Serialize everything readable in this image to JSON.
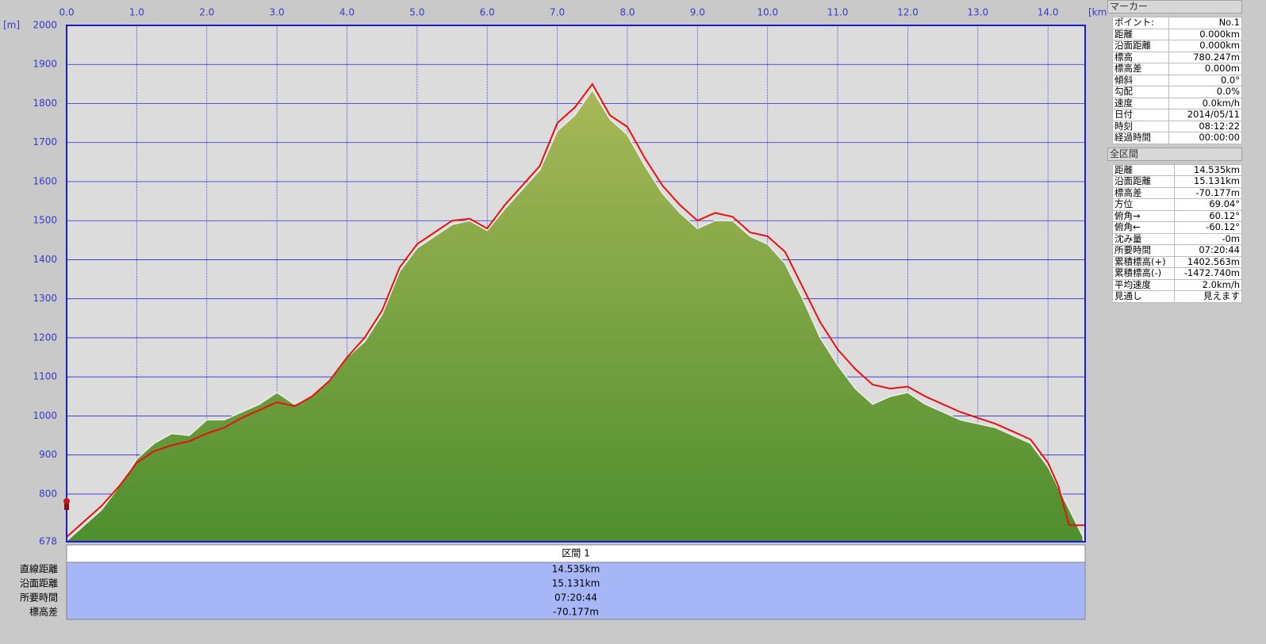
{
  "chart_data": {
    "type": "area",
    "xlabel": "[km]",
    "ylabel": "[m]",
    "xlim": [
      0,
      14.53
    ],
    "ylim": [
      678,
      2000
    ],
    "xticks": [
      {
        "value": 0,
        "label": "0.0"
      },
      {
        "value": 1,
        "label": "1.0"
      },
      {
        "value": 2,
        "label": "2.0"
      },
      {
        "value": 3,
        "label": "3.0"
      },
      {
        "value": 4,
        "label": "4.0"
      },
      {
        "value": 5,
        "label": "5.0"
      },
      {
        "value": 6,
        "label": "6.0"
      },
      {
        "value": 7,
        "label": "7.0"
      },
      {
        "value": 8,
        "label": "8.0"
      },
      {
        "value": 9,
        "label": "9.0"
      },
      {
        "value": 10,
        "label": "10.0"
      },
      {
        "value": 11,
        "label": "11.0"
      },
      {
        "value": 12,
        "label": "12.0"
      },
      {
        "value": 13,
        "label": "13.0"
      },
      {
        "value": 14,
        "label": "14.0"
      }
    ],
    "yticks": [
      678,
      800,
      900,
      1000,
      1100,
      1200,
      1300,
      1400,
      1500,
      1600,
      1700,
      1800,
      1900,
      2000
    ],
    "grid": true,
    "series": [
      {
        "kind": "area",
        "color": "#5a9a34",
        "x": [
          0,
          0.25,
          0.5,
          0.75,
          1,
          1.25,
          1.5,
          1.75,
          2,
          2.25,
          2.5,
          2.75,
          3,
          3.25,
          3.5,
          3.75,
          4,
          4.25,
          4.5,
          4.75,
          5,
          5.25,
          5.5,
          5.75,
          6,
          6.25,
          6.5,
          6.75,
          7,
          7.25,
          7.5,
          7.75,
          8,
          8.25,
          8.5,
          8.75,
          9,
          9.25,
          9.5,
          9.75,
          10,
          10.25,
          10.5,
          10.75,
          11,
          11.25,
          11.5,
          11.75,
          12,
          12.25,
          12.5,
          12.75,
          13,
          13.25,
          13.5,
          13.75,
          14,
          14.25,
          14.5
        ],
        "values": [
          680,
          720,
          760,
          820,
          890,
          930,
          955,
          950,
          990,
          990,
          1010,
          1030,
          1060,
          1030,
          1050,
          1090,
          1150,
          1190,
          1260,
          1370,
          1430,
          1460,
          1490,
          1500,
          1475,
          1530,
          1580,
          1630,
          1730,
          1770,
          1835,
          1760,
          1720,
          1640,
          1570,
          1520,
          1480,
          1500,
          1500,
          1460,
          1440,
          1390,
          1300,
          1200,
          1130,
          1070,
          1030,
          1050,
          1060,
          1030,
          1010,
          990,
          980,
          970,
          950,
          930,
          870,
          780,
          690
        ]
      },
      {
        "kind": "line",
        "color": "#e81010",
        "x": [
          0,
          0.25,
          0.5,
          0.75,
          1,
          1.25,
          1.5,
          1.75,
          2,
          2.25,
          2.5,
          2.75,
          3,
          3.25,
          3.5,
          3.75,
          4,
          4.25,
          4.5,
          4.75,
          5,
          5.25,
          5.5,
          5.75,
          6,
          6.25,
          6.5,
          6.75,
          7,
          7.25,
          7.5,
          7.75,
          8,
          8.25,
          8.5,
          8.75,
          9,
          9.25,
          9.5,
          9.75,
          10,
          10.25,
          10.5,
          10.75,
          11,
          11.25,
          11.5,
          11.75,
          12,
          12.25,
          12.5,
          12.75,
          13,
          13.25,
          13.5,
          13.75,
          14,
          14.15,
          14.3,
          14.53
        ],
        "values": [
          690,
          730,
          770,
          820,
          880,
          910,
          925,
          935,
          955,
          970,
          995,
          1015,
          1035,
          1025,
          1050,
          1090,
          1150,
          1200,
          1270,
          1380,
          1440,
          1470,
          1500,
          1505,
          1480,
          1540,
          1590,
          1640,
          1750,
          1790,
          1850,
          1770,
          1740,
          1660,
          1590,
          1540,
          1500,
          1520,
          1510,
          1470,
          1460,
          1420,
          1330,
          1240,
          1170,
          1120,
          1080,
          1070,
          1075,
          1050,
          1030,
          1010,
          995,
          980,
          960,
          940,
          880,
          820,
          720,
          720
        ]
      }
    ]
  },
  "interval_table": {
    "header": "区間 1",
    "rows": [
      [
        "直線距離",
        "14.535km"
      ],
      [
        "沿面距離",
        "15.131km"
      ],
      [
        "所要時間",
        "07:20:44"
      ],
      [
        "標高差",
        "-70.177m"
      ]
    ]
  },
  "marker_panel": {
    "title": "マーカー",
    "rows": [
      [
        "ポイント:",
        "No.1"
      ],
      [
        "距離",
        "0.000km"
      ],
      [
        "沿面距離",
        "0.000km"
      ],
      [
        "標高",
        "780.247m"
      ],
      [
        "標高差",
        "0.000m"
      ],
      [
        "傾斜",
        "0.0°"
      ],
      [
        "勾配",
        "0.0%"
      ],
      [
        "速度",
        "0.0km/h"
      ],
      [
        "日付",
        "2014/05/11"
      ],
      [
        "時刻",
        "08:12:22"
      ],
      [
        "経過時間",
        "00:00:00"
      ]
    ]
  },
  "section_panel": {
    "title": "全区間",
    "rows": [
      [
        "距離",
        "14.535km"
      ],
      [
        "沿面距離",
        "15.131km"
      ],
      [
        "標高差",
        "-70.177m"
      ],
      [
        "方位",
        "69.04°"
      ],
      [
        "俯角→",
        "60.12°"
      ],
      [
        "俯角←",
        "-60.12°"
      ],
      [
        "沈み量",
        "-0m"
      ],
      [
        "所要時間",
        "07:20:44"
      ],
      [
        "累積標高(+)",
        "1402.563m"
      ],
      [
        "累積標高(-)",
        "-1472.740m"
      ],
      [
        "平均速度",
        "2.0km/h"
      ],
      [
        "見通し",
        "見えます"
      ]
    ]
  }
}
